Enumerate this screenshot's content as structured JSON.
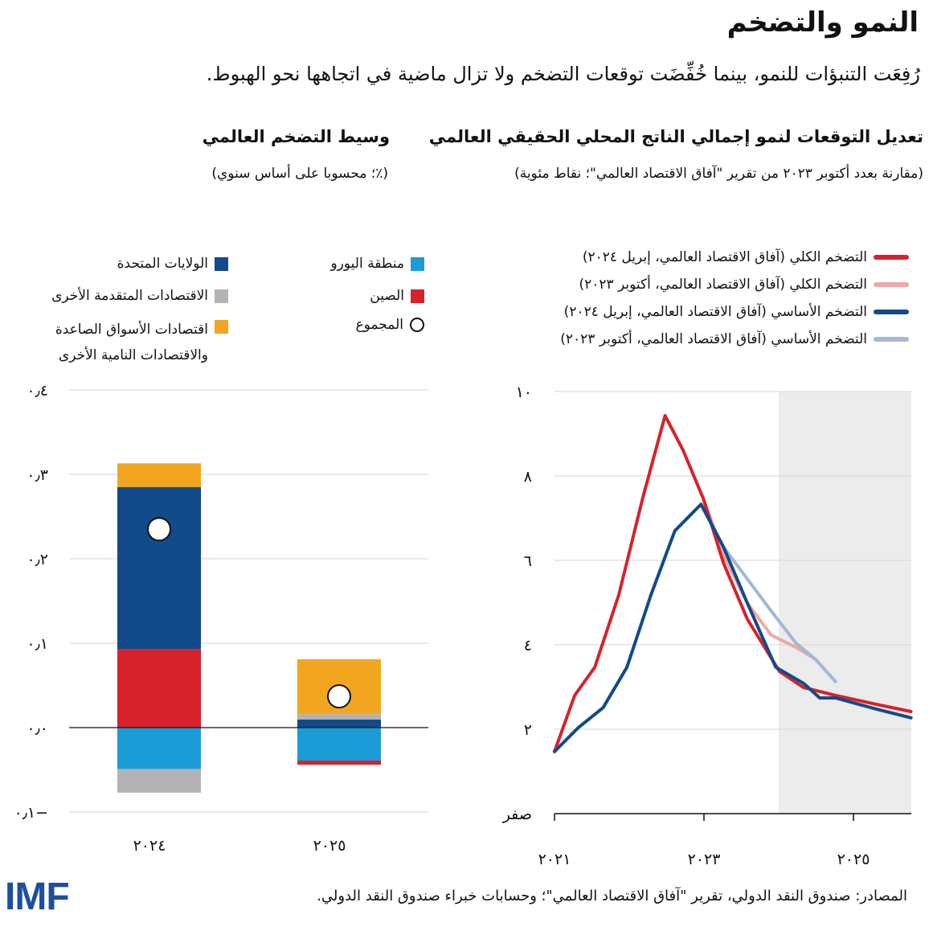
{
  "title": "النمو والتضخم",
  "subtitle": "رُفِعَت التنبؤات للنمو، بينما خُفِّضَت توقعات التضخم ولا تزال ماضية في اتجاهها نحو الهبوط.",
  "colors": {
    "headline_apr24": "#d7222b",
    "headline_oct23": "#f1a7a9",
    "core_apr24": "#124a8a",
    "core_oct23": "#a2b8d6",
    "eurozone": "#1b9cd8",
    "china": "#d7222b",
    "us": "#124a8a",
    "other_adv": "#b3b3b3",
    "emde": "#f2a61f",
    "shade": "#ececec"
  },
  "chart_data": [
    {
      "type": "line",
      "title": "تعديل التوقعات لنمو إجمالي الناتج المحلي الحقيقي العالمي",
      "subtitle": "(مقارنة بعدد أكتوبر ٢٠٢٣ من تقرير \"آفاق الاقتصاد العالمي\"؛ نقاط مئوية)",
      "ylim": [
        0,
        10
      ],
      "xlim": [
        2021,
        2025.77
      ],
      "yticks": [
        {
          "v": 10,
          "label": "١٠"
        },
        {
          "v": 8,
          "label": "٨"
        },
        {
          "v": 6,
          "label": "٦"
        },
        {
          "v": 4,
          "label": "٤"
        },
        {
          "v": 2,
          "label": "٢"
        },
        {
          "v": 0,
          "label": "صفر"
        }
      ],
      "xticks": [
        {
          "v": 2021,
          "label": "٢٠٢١"
        },
        {
          "v": 2023,
          "label": "٢٠٢٣"
        },
        {
          "v": 2025,
          "label": "٢٠٢٥"
        }
      ],
      "shaded_from": 2024,
      "series": [
        {
          "name": "التضخم الكلي (آفاق الاقتصاد العالمي، أكتوبر ٢٠٢٣)",
          "color_key": "headline_oct23",
          "points": [
            [
              2022.99,
              7.47
            ],
            [
              2023.26,
              6.13
            ],
            [
              2023.58,
              4.99
            ],
            [
              2023.9,
              4.23
            ],
            [
              2024.23,
              3.94
            ],
            [
              2024.49,
              3.66
            ],
            [
              2024.76,
              3.13
            ]
          ]
        },
        {
          "name": "التضخم الأساسي (آفاق الاقتصاد العالمي، أكتوبر ٢٠٢٣)",
          "color_key": "core_oct23",
          "points": [
            [
              2022.96,
              7.33
            ],
            [
              2023.26,
              6.32
            ],
            [
              2023.58,
              5.56
            ],
            [
              2023.9,
              4.8
            ],
            [
              2024.23,
              4.04
            ],
            [
              2024.49,
              3.66
            ],
            [
              2024.76,
              3.13
            ]
          ]
        },
        {
          "name": "التضخم الكلي (آفاق الاقتصاد العالمي، إبريل ٢٠٢٤)",
          "color_key": "headline_apr24",
          "points": [
            [
              2021,
              1.47
            ],
            [
              2021.27,
              2.8
            ],
            [
              2021.54,
              3.47
            ],
            [
              2021.86,
              5.18
            ],
            [
              2022.18,
              7.47
            ],
            [
              2022.48,
              9.43
            ],
            [
              2022.72,
              8.61
            ],
            [
              2022.99,
              7.47
            ],
            [
              2023.26,
              5.94
            ],
            [
              2023.58,
              4.61
            ],
            [
              2024.01,
              3.37
            ],
            [
              2024.33,
              2.99
            ],
            [
              2024.76,
              2.8
            ],
            [
              2025.41,
              2.55
            ],
            [
              2025.77,
              2.42
            ]
          ]
        },
        {
          "name": "التضخم الأساسي (آفاق الاقتصاد العالمي، إبريل ٢٠٢٤)",
          "color_key": "core_apr24",
          "points": [
            [
              2021,
              1.47
            ],
            [
              2021.32,
              2.04
            ],
            [
              2021.65,
              2.51
            ],
            [
              2021.97,
              3.47
            ],
            [
              2022.29,
              5.18
            ],
            [
              2022.61,
              6.7
            ],
            [
              2022.96,
              7.33
            ],
            [
              2023.26,
              6.32
            ],
            [
              2023.58,
              4.99
            ],
            [
              2023.96,
              3.47
            ],
            [
              2024.33,
              3.09
            ],
            [
              2024.55,
              2.74
            ],
            [
              2024.76,
              2.74
            ],
            [
              2025.3,
              2.48
            ],
            [
              2025.77,
              2.27
            ]
          ]
        }
      ],
      "legend_order": [
        2,
        0,
        3,
        1
      ]
    },
    {
      "type": "bar",
      "title": "وسيط التضخم العالمي",
      "subtitle": "(٪؛ محسوبا على أساس سنوي)",
      "ylim": [
        -0.1,
        0.4
      ],
      "yticks": [
        {
          "v": 0.4,
          "label": "٠٫٤"
        },
        {
          "v": 0.3,
          "label": "٠٫٣"
        },
        {
          "v": 0.2,
          "label": "٠٫٢"
        },
        {
          "v": 0.1,
          "label": "٠٫١"
        },
        {
          "v": 0,
          "label": "٠٫٠"
        },
        {
          "v": -0.1,
          "label": "٠٫١−"
        }
      ],
      "categories": [
        "٢٠٢٤",
        "٢٠٢٥"
      ],
      "series": [
        {
          "name": "منطقة اليورو",
          "color_key": "eurozone",
          "values": [
            -0.049,
            -0.039
          ]
        },
        {
          "name": "الصين",
          "color_key": "china",
          "values": [
            0.093,
            -0.005
          ]
        },
        {
          "name": "الولايات المتحدة",
          "color_key": "us",
          "values": [
            0.192,
            0.0095
          ]
        },
        {
          "name": "الاقتصادات المتقدمة الأخرى",
          "color_key": "other_adv",
          "values": [
            -0.028,
            0.0065
          ]
        },
        {
          "name": "اقتصادات الأسواق الصاعدة والاقتصادات النامية الأخرى",
          "name_line1": "اقتصادات الأسواق الصاعدة",
          "name_line2": "والاقتصادات النامية الأخرى",
          "color_key": "emde",
          "values": [
            0.028,
            0.065
          ]
        }
      ],
      "total": {
        "name": "المجموع",
        "values": [
          0.235,
          0.037
        ]
      }
    }
  ],
  "footer": {
    "sources": "المصادر: صندوق النقد الدولي، تقرير \"آفاق الاقتصاد العالمي\"؛ وحسابات خبراء صندوق النقد الدولي.",
    "logo": "IMF"
  }
}
